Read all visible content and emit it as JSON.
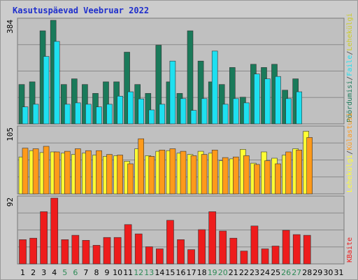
{
  "title": "Kasutuspäevad Veebruar 2022",
  "colors": {
    "frame_bg": "#cccccc",
    "panel_bg": "#c0c0c0",
    "grid": "#8a8a8a",
    "title": "#1f2fcc",
    "weekday_label": "#000000",
    "weekend_label": "#2e8b57",
    "hits": "#1a7a5a",
    "files": "#1ee0f0",
    "pages": "#ffff33",
    "visits": "#ff9a1a",
    "sites": "#ff9a1a",
    "kbytes": "#ee1c1c"
  },
  "chart_data": [
    {
      "type": "bar",
      "panel": "top",
      "ymax_label": "384",
      "legend": [
        {
          "text": "Pöördumisi",
          "color": "#1a7a5a"
        },
        {
          "text": "/",
          "color": "#444444"
        },
        {
          "text": "Faile",
          "color": "#1ee0f0"
        },
        {
          "text": "/",
          "color": "#444444"
        },
        {
          "text": "Lehekülgi",
          "color": "#cccc22"
        }
      ],
      "categories": [
        "1",
        "2",
        "3",
        "4",
        "5",
        "6",
        "7",
        "8",
        "9",
        "10",
        "11",
        "12",
        "13",
        "14",
        "15",
        "16",
        "17",
        "18",
        "19",
        "20",
        "21",
        "22",
        "23",
        "24",
        "25",
        "26",
        "27",
        "28",
        "29",
        "30",
        "31"
      ],
      "ylim": [
        0,
        384
      ],
      "series": [
        {
          "name": "Pöördumisi",
          "values": [
            146,
            156,
            345,
            384,
            146,
            167,
            146,
            113,
            156,
            156,
            266,
            146,
            113,
            292,
            156,
            113,
            345,
            233,
            156,
            146,
            209,
            99,
            221,
            209,
            221,
            125,
            167,
            0,
            0,
            0,
            0
          ]
        },
        {
          "name": "Faile",
          "values": [
            63,
            73,
            250,
            306,
            73,
            78,
            73,
            63,
            73,
            103,
            119,
            93,
            52,
            73,
            233,
            94,
            50,
            94,
            270,
            73,
            94,
            78,
            185,
            167,
            176,
            94,
            119,
            0,
            0,
            0,
            0
          ]
        }
      ]
    },
    {
      "type": "bar",
      "panel": "middle",
      "ymax_label": "105",
      "legend": [
        {
          "text": "Lehekülgi",
          "color": "#ffff33"
        },
        {
          "text": "/",
          "color": "#444444"
        },
        {
          "text": "Külastusi",
          "color": "#ff9a1a"
        }
      ],
      "categories": [
        "1",
        "2",
        "3",
        "4",
        "5",
        "6",
        "7",
        "8",
        "9",
        "10",
        "11",
        "12",
        "13",
        "14",
        "15",
        "16",
        "17",
        "18",
        "19",
        "20",
        "21",
        "22",
        "23",
        "24",
        "25",
        "26",
        "27",
        "28",
        "29",
        "30",
        "31"
      ],
      "ylim": [
        0,
        105
      ],
      "series": [
        {
          "name": "Lehekülgi",
          "values": [
            59,
            69,
            66,
            67,
            65,
            63,
            65,
            62,
            60,
            61,
            52,
            72,
            61,
            68,
            69,
            65,
            63,
            68,
            65,
            53,
            56,
            71,
            49,
            67,
            57,
            62,
            72,
            100,
            0,
            0,
            0
          ]
        },
        {
          "name": "Külastusi",
          "values": [
            73,
            72,
            76,
            67,
            68,
            72,
            69,
            69,
            63,
            62,
            48,
            88,
            60,
            70,
            72,
            68,
            61,
            63,
            70,
            58,
            59,
            61,
            47,
            53,
            48,
            67,
            70,
            90,
            0,
            0,
            0
          ]
        }
      ]
    },
    {
      "type": "bar",
      "panel": "bottom",
      "ymax_label": "92",
      "legend": [
        {
          "text": "KBaite",
          "color": "#ee1c1c"
        }
      ],
      "categories": [
        "1",
        "2",
        "3",
        "4",
        "5",
        "6",
        "7",
        "8",
        "9",
        "10",
        "11",
        "12",
        "13",
        "14",
        "15",
        "16",
        "17",
        "18",
        "19",
        "20",
        "21",
        "22",
        "23",
        "24",
        "25",
        "26",
        "27",
        "28",
        "29",
        "30",
        "31"
      ],
      "ylim": [
        0,
        92
      ],
      "series": [
        {
          "name": "KBaite",
          "values": [
            34,
            36,
            73,
            92,
            34,
            40,
            33,
            26,
            37,
            37,
            55,
            42,
            24,
            21,
            61,
            34,
            20,
            48,
            73,
            46,
            36,
            18,
            53,
            21,
            25,
            47,
            41,
            40,
            0,
            0,
            0
          ]
        }
      ]
    }
  ],
  "x_axis": {
    "days": [
      "1",
      "2",
      "3",
      "4",
      "5",
      "6",
      "7",
      "8",
      "9",
      "10",
      "11",
      "12",
      "13",
      "14",
      "15",
      "16",
      "17",
      "18",
      "19",
      "20",
      "21",
      "22",
      "23",
      "24",
      "25",
      "26",
      "27",
      "28",
      "29",
      "30",
      "31"
    ],
    "weekend_days": [
      "5",
      "6",
      "12",
      "13",
      "19",
      "20",
      "26",
      "27"
    ]
  }
}
